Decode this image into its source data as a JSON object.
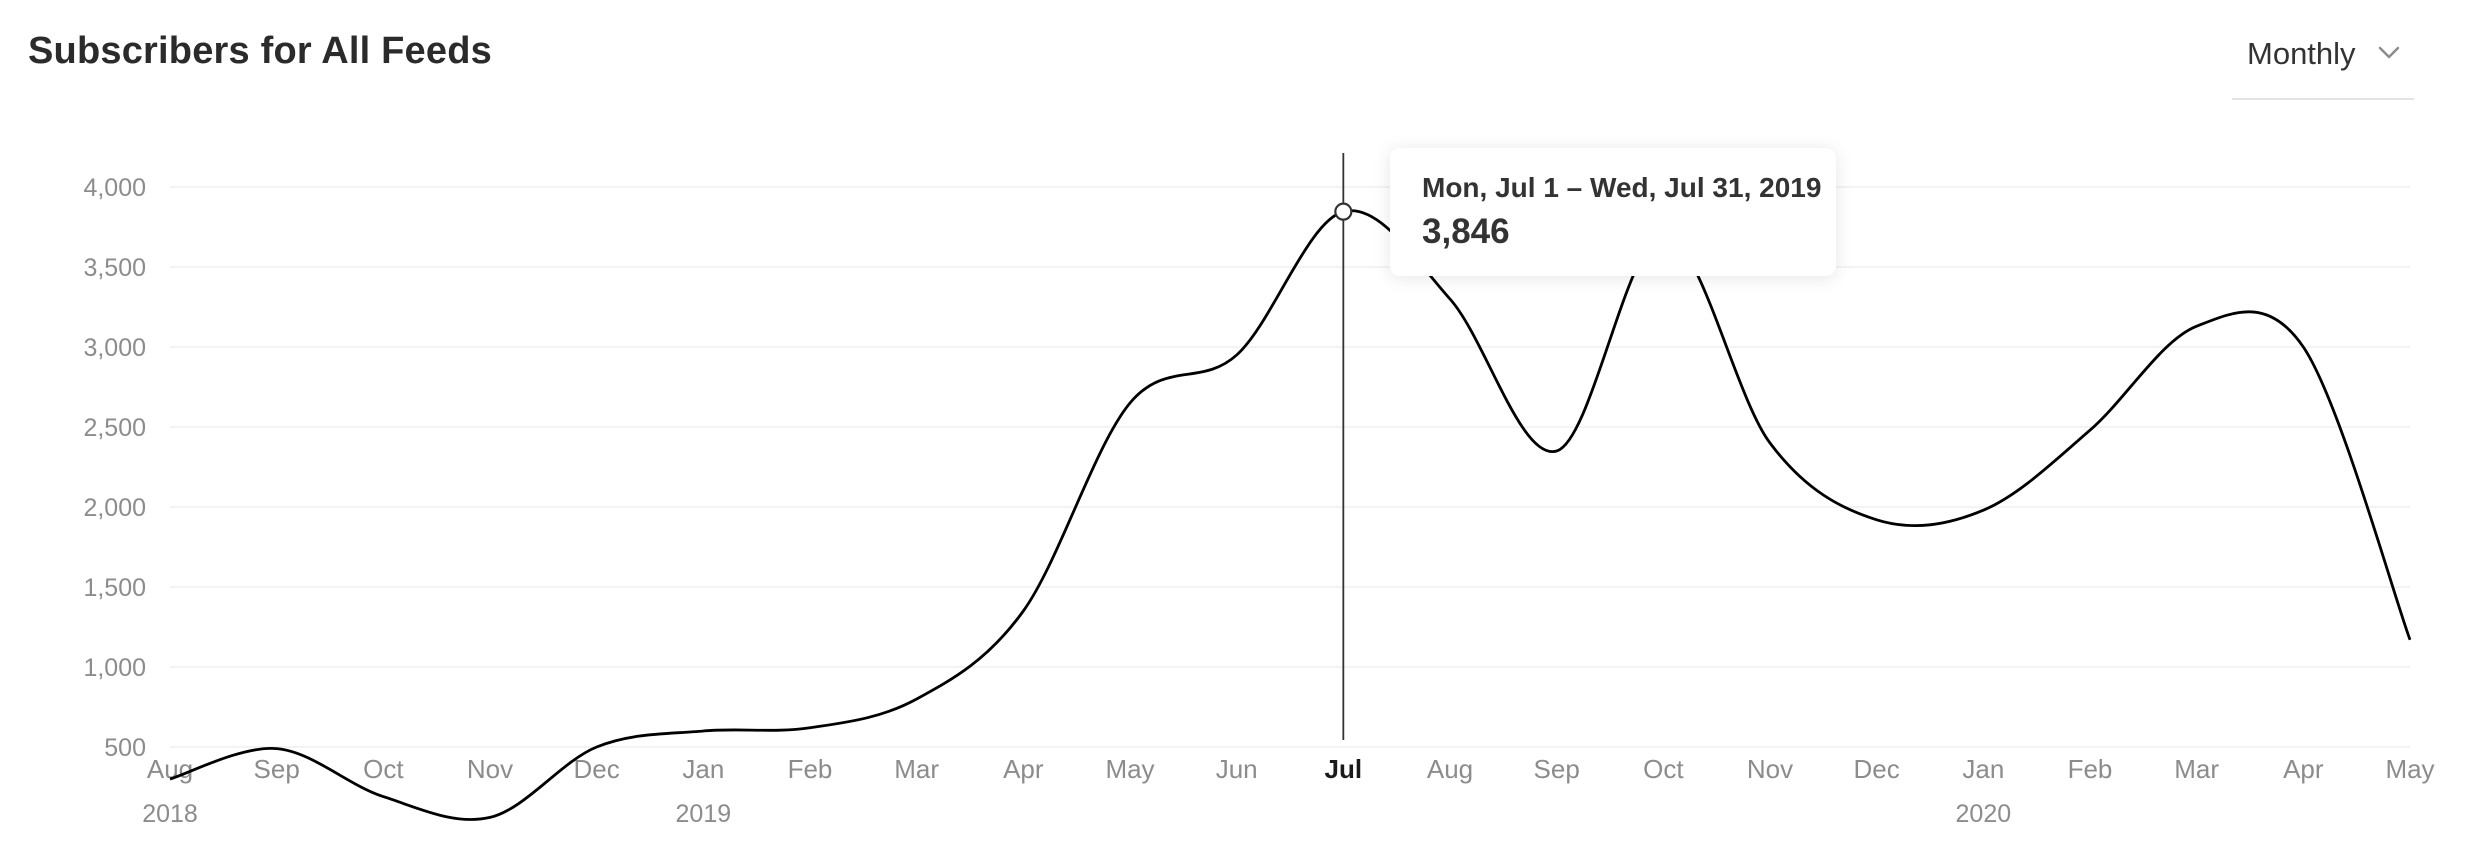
{
  "header": {
    "title": "Subscribers for All Feeds"
  },
  "period_select": {
    "label": "Monthly",
    "icon": "chevron-down-icon"
  },
  "tooltip": {
    "range": "Mon, Jul 1 – Wed, Jul 31, 2019",
    "value": "3,846"
  },
  "colors": {
    "line": "#000000",
    "grid": "#efefef",
    "tick": "#8c8c8c"
  },
  "chart_data": {
    "type": "line",
    "title": "Subscribers for All Feeds",
    "x": [
      "2018-08",
      "2018-09",
      "2018-10",
      "2018-11",
      "2018-12",
      "2019-01",
      "2019-02",
      "2019-03",
      "2019-04",
      "2019-05",
      "2019-06",
      "2019-07",
      "2019-08",
      "2019-09",
      "2019-10",
      "2019-11",
      "2019-12",
      "2020-01",
      "2020-02",
      "2020-03",
      "2020-04",
      "2020-05"
    ],
    "x_tick_labels": [
      "Aug",
      "Sep",
      "Oct",
      "Nov",
      "Dec",
      "Jan",
      "Feb",
      "Mar",
      "Apr",
      "May",
      "Jun",
      "Jul",
      "Aug",
      "Sep",
      "Oct",
      "Nov",
      "Dec",
      "Jan",
      "Feb",
      "Mar",
      "Apr",
      "May"
    ],
    "year_labels": [
      {
        "index": 0,
        "label": "2018"
      },
      {
        "index": 5,
        "label": "2019"
      },
      {
        "index": 17,
        "label": "2020"
      }
    ],
    "series": [
      {
        "values": [
          300,
          490,
          190,
          60,
          500,
          600,
          620,
          800,
          1350,
          2650,
          2950,
          3846,
          3300,
          2350,
          3700,
          2400,
          1920,
          1980,
          2480,
          3130,
          3000,
          1170
        ]
      }
    ],
    "y_ticks": [
      500,
      1000,
      1500,
      2000,
      2500,
      3000,
      3500,
      4000
    ],
    "y_tick_labels": [
      "500",
      "1,000",
      "1,500",
      "2,000",
      "2,500",
      "3,000",
      "3,500",
      "4,000"
    ],
    "ylim": [
      0,
      4000
    ],
    "highlight_index": 11,
    "grid": true,
    "legend": "none"
  }
}
